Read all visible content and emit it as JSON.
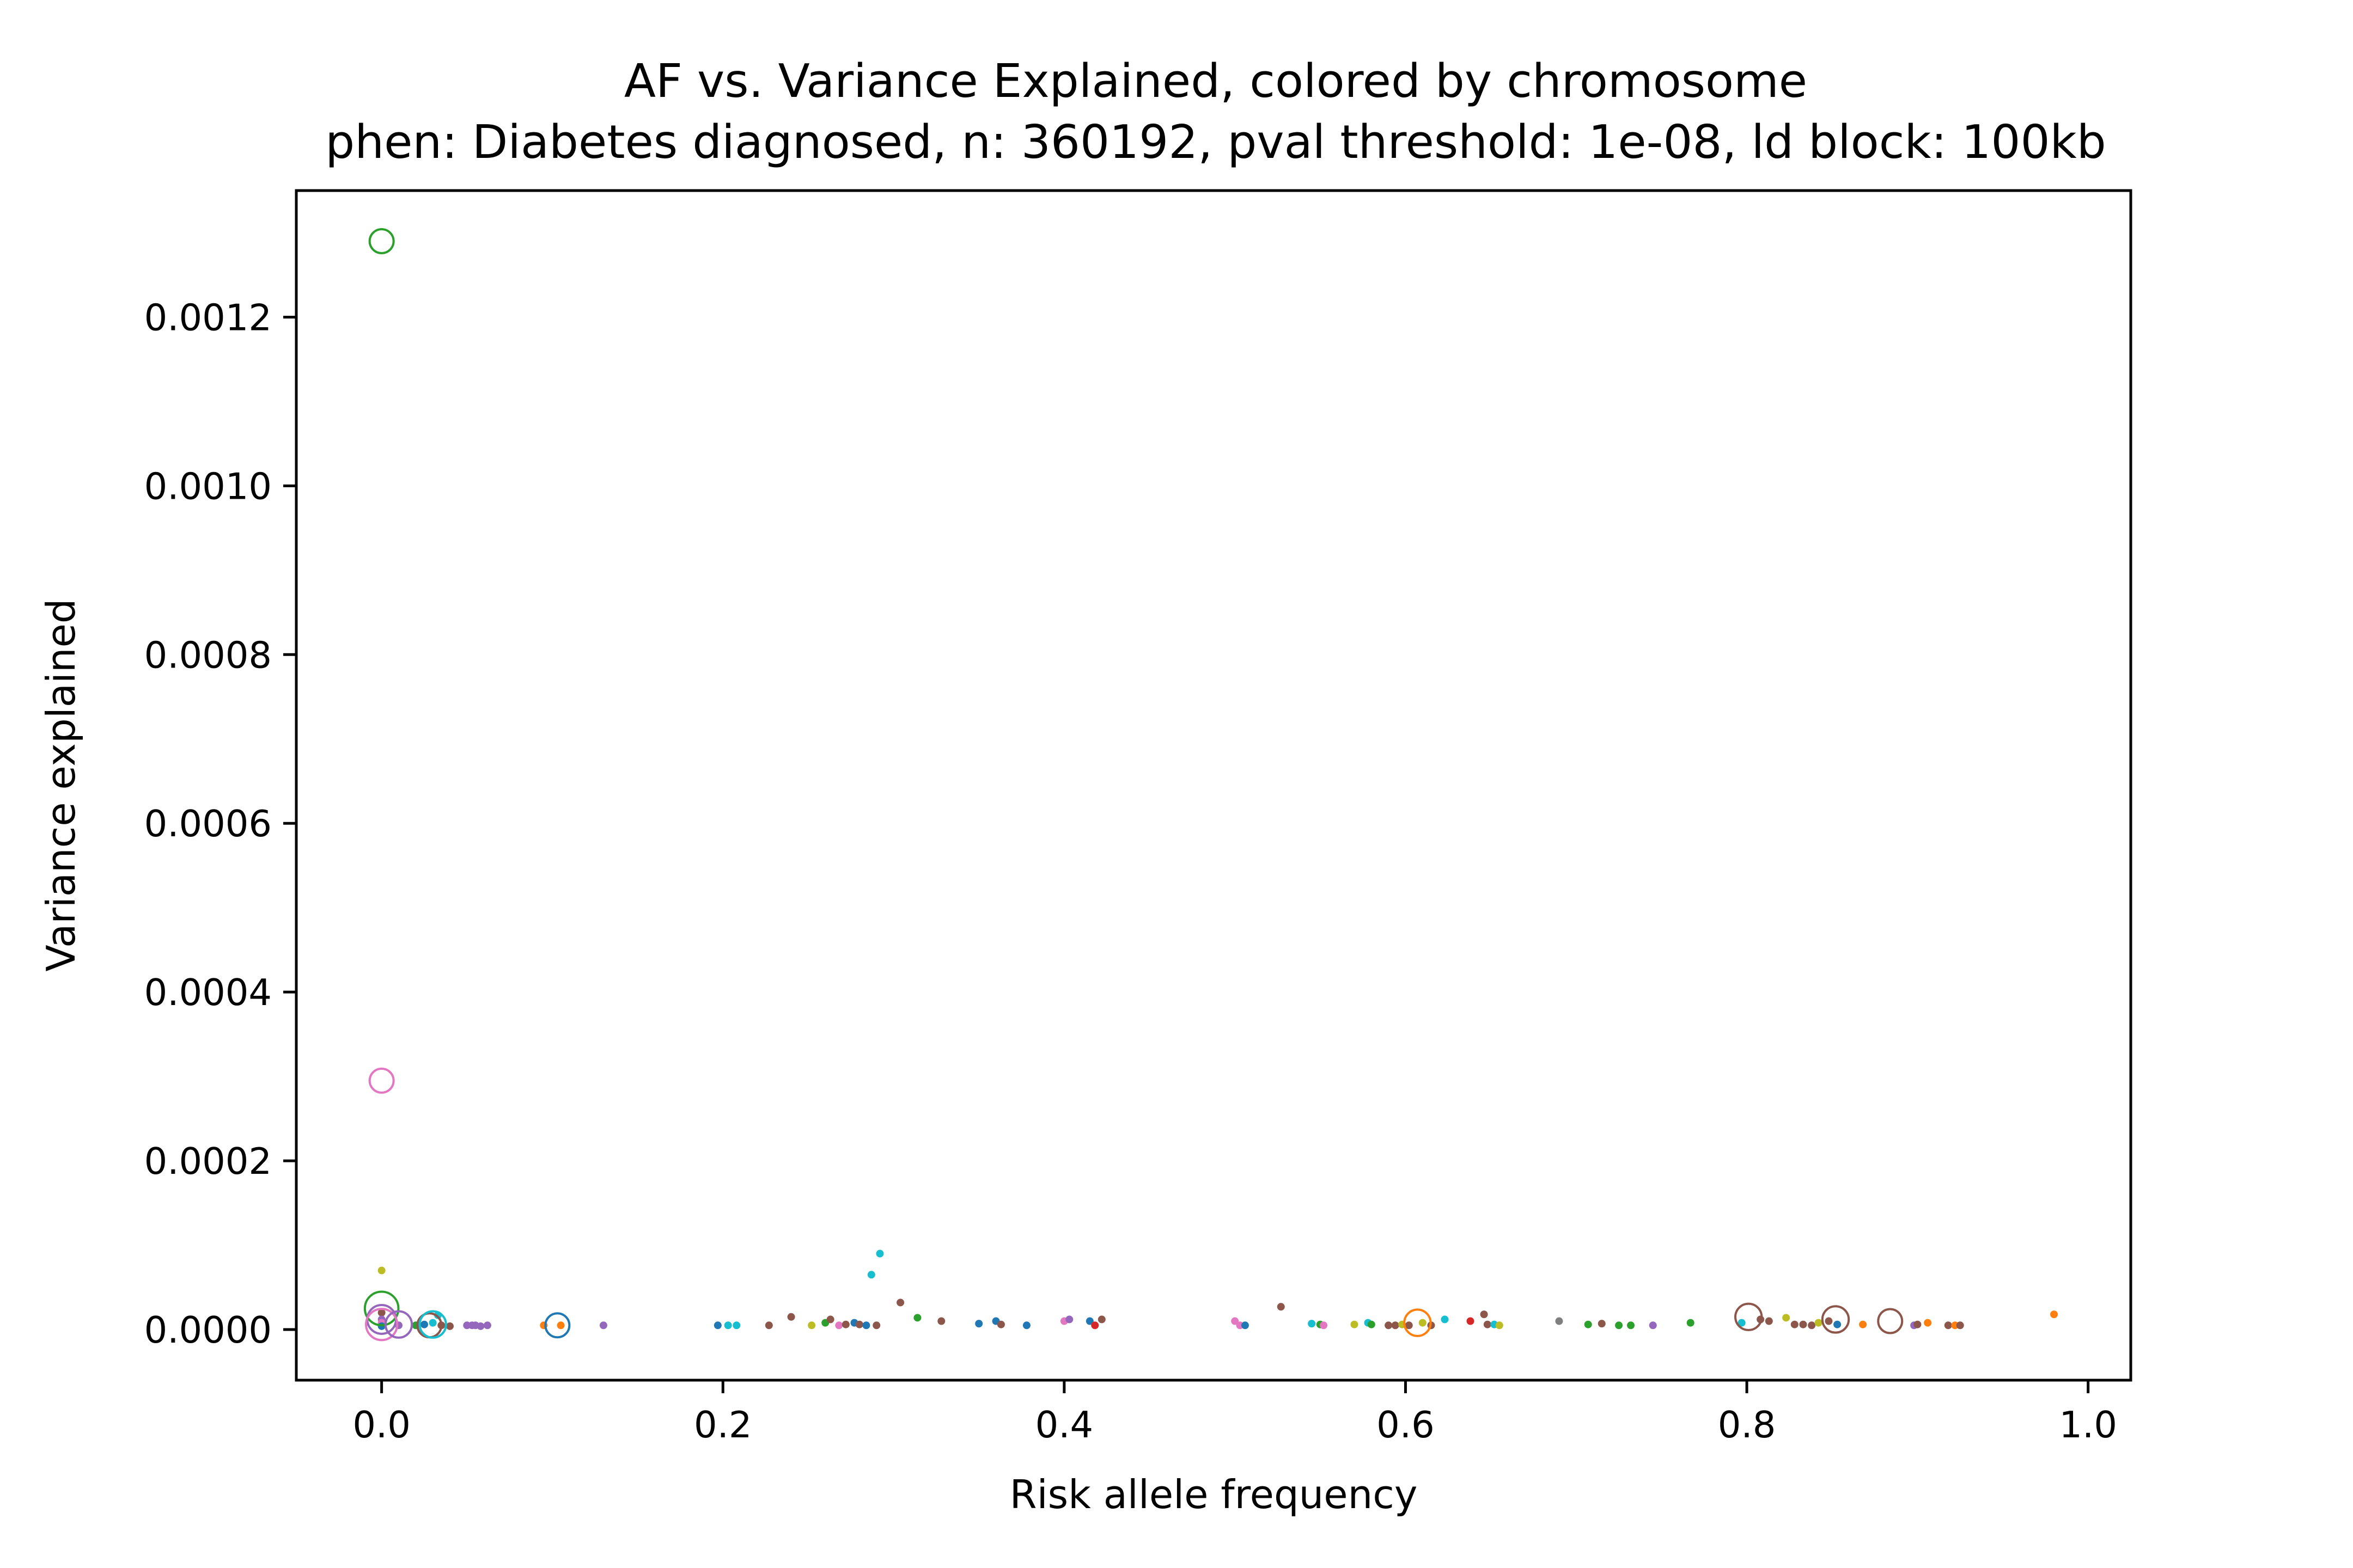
{
  "chart_data": {
    "type": "scatter",
    "title": "AF vs. Variance Explained, colored by chromosome",
    "subtitle": "phen: Diabetes diagnosed, n: 360192, pval threshold: 1e-08, ld block: 100kb",
    "xlabel": "Risk allele frequency",
    "ylabel": "Variance explained",
    "xlim": [
      -0.05,
      1.025
    ],
    "ylim": [
      -6e-05,
      0.00135
    ],
    "xticks": [
      0.0,
      0.2,
      0.4,
      0.6,
      0.8,
      1.0
    ],
    "xtick_labels": [
      "0.0",
      "0.2",
      "0.4",
      "0.6",
      "0.8",
      "1.0"
    ],
    "yticks": [
      0.0,
      0.0002,
      0.0004,
      0.0006,
      0.0008,
      0.001,
      0.0012
    ],
    "ytick_labels": [
      "0.0000",
      "0.0002",
      "0.0004",
      "0.0006",
      "0.0008",
      "0.0010",
      "0.0012"
    ],
    "grid": false,
    "legend": "none",
    "palette": [
      "#1f77b4",
      "#ff7f0e",
      "#2ca02c",
      "#d62728",
      "#9467bd",
      "#8c564b",
      "#e377c2",
      "#7f7f7f",
      "#bcbd22",
      "#17becf"
    ],
    "dots": [
      [
        0.0,
        7e-05,
        8
      ],
      [
        0.0,
        2e-05,
        5
      ],
      [
        0.0,
        1.2e-05,
        4
      ],
      [
        0.0,
        8e-06,
        6
      ],
      [
        0.0,
        4e-06,
        0
      ],
      [
        0.01,
        5e-06,
        4
      ],
      [
        0.02,
        5e-06,
        2
      ],
      [
        0.025,
        6e-06,
        0
      ],
      [
        0.03,
        8e-06,
        9
      ],
      [
        0.033,
        1.7e-05,
        9
      ],
      [
        0.035,
        5e-06,
        5
      ],
      [
        0.04,
        4e-06,
        5
      ],
      [
        0.05,
        5e-06,
        4
      ],
      [
        0.053,
        5e-06,
        4
      ],
      [
        0.055,
        5e-06,
        4
      ],
      [
        0.058,
        4e-06,
        4
      ],
      [
        0.062,
        5e-06,
        4
      ],
      [
        0.095,
        5e-06,
        1
      ],
      [
        0.105,
        5e-06,
        1
      ],
      [
        0.13,
        5e-06,
        4
      ],
      [
        0.197,
        5e-06,
        0
      ],
      [
        0.203,
        5e-06,
        9
      ],
      [
        0.208,
        5e-06,
        9
      ],
      [
        0.227,
        5e-06,
        5
      ],
      [
        0.24,
        1.5e-05,
        5
      ],
      [
        0.252,
        5e-06,
        8
      ],
      [
        0.26,
        8e-06,
        2
      ],
      [
        0.263,
        1.2e-05,
        5
      ],
      [
        0.268,
        5e-06,
        6
      ],
      [
        0.272,
        6e-06,
        5
      ],
      [
        0.277,
        8e-06,
        0
      ],
      [
        0.28,
        6e-06,
        5
      ],
      [
        0.284,
        5e-06,
        0
      ],
      [
        0.287,
        6.5e-05,
        9
      ],
      [
        0.29,
        5e-06,
        5
      ],
      [
        0.292,
        9e-05,
        9
      ],
      [
        0.304,
        3.2e-05,
        5
      ],
      [
        0.314,
        1.4e-05,
        2
      ],
      [
        0.328,
        1e-05,
        5
      ],
      [
        0.35,
        7e-06,
        0
      ],
      [
        0.36,
        1e-05,
        0
      ],
      [
        0.363,
        6e-06,
        5
      ],
      [
        0.378,
        5e-06,
        0
      ],
      [
        0.4,
        1e-05,
        6
      ],
      [
        0.403,
        1.2e-05,
        4
      ],
      [
        0.415,
        1e-05,
        0
      ],
      [
        0.418,
        5e-06,
        3
      ],
      [
        0.422,
        1.2e-05,
        5
      ],
      [
        0.5,
        1e-05,
        6
      ],
      [
        0.503,
        5e-06,
        6
      ],
      [
        0.506,
        5e-06,
        0
      ],
      [
        0.527,
        2.7e-05,
        5
      ],
      [
        0.545,
        7e-06,
        9
      ],
      [
        0.55,
        6e-06,
        2
      ],
      [
        0.552,
        5e-06,
        6
      ],
      [
        0.57,
        6e-06,
        8
      ],
      [
        0.578,
        8e-06,
        9
      ],
      [
        0.58,
        6e-06,
        2
      ],
      [
        0.59,
        5e-06,
        5
      ],
      [
        0.594,
        5e-06,
        5
      ],
      [
        0.598,
        6e-06,
        8
      ],
      [
        0.602,
        5e-06,
        5
      ],
      [
        0.61,
        8e-06,
        8
      ],
      [
        0.615,
        5e-06,
        5
      ],
      [
        0.623,
        1.2e-05,
        9
      ],
      [
        0.638,
        1e-05,
        3
      ],
      [
        0.646,
        1.8e-05,
        5
      ],
      [
        0.648,
        6e-06,
        5
      ],
      [
        0.652,
        6e-06,
        9
      ],
      [
        0.655,
        5e-06,
        8
      ],
      [
        0.69,
        1e-05,
        7
      ],
      [
        0.707,
        6e-06,
        2
      ],
      [
        0.715,
        7e-06,
        5
      ],
      [
        0.725,
        5e-06,
        2
      ],
      [
        0.732,
        5e-06,
        2
      ],
      [
        0.745,
        5e-06,
        4
      ],
      [
        0.767,
        8e-06,
        2
      ],
      [
        0.797,
        8e-06,
        9
      ],
      [
        0.808,
        1.2e-05,
        5
      ],
      [
        0.813,
        1e-05,
        5
      ],
      [
        0.823,
        1.4e-05,
        8
      ],
      [
        0.828,
        6e-06,
        5
      ],
      [
        0.833,
        6e-06,
        5
      ],
      [
        0.838,
        5e-06,
        5
      ],
      [
        0.842,
        8e-06,
        8
      ],
      [
        0.848,
        1e-05,
        5
      ],
      [
        0.853,
        6e-06,
        0
      ],
      [
        0.868,
        6e-06,
        1
      ],
      [
        0.898,
        5e-06,
        4
      ],
      [
        0.9,
        6e-06,
        5
      ],
      [
        0.906,
        8e-06,
        1
      ],
      [
        0.918,
        5e-06,
        5
      ],
      [
        0.922,
        5e-06,
        1
      ],
      [
        0.925,
        5e-06,
        5
      ],
      [
        0.98,
        1.8e-05,
        1
      ]
    ],
    "rings": [
      [
        0.0,
        0.00129,
        2,
        1.0
      ],
      [
        0.0,
        0.000295,
        6,
        1.0
      ],
      [
        0.0,
        2.5e-05,
        2,
        1.4
      ],
      [
        0.0,
        1.2e-05,
        4,
        1.2
      ],
      [
        0.0,
        6e-06,
        6,
        1.3
      ],
      [
        0.01,
        6e-06,
        4,
        1.1
      ],
      [
        0.028,
        5e-06,
        5,
        1.0
      ],
      [
        0.03,
        6e-06,
        9,
        1.1
      ],
      [
        0.103,
        5e-06,
        0,
        1.0
      ],
      [
        0.607,
        8e-06,
        1,
        1.1
      ],
      [
        0.801,
        1.5e-05,
        5,
        1.1
      ],
      [
        0.852,
        1.2e-05,
        5,
        1.1
      ],
      [
        0.884,
        1e-05,
        5,
        1.0
      ]
    ]
  }
}
